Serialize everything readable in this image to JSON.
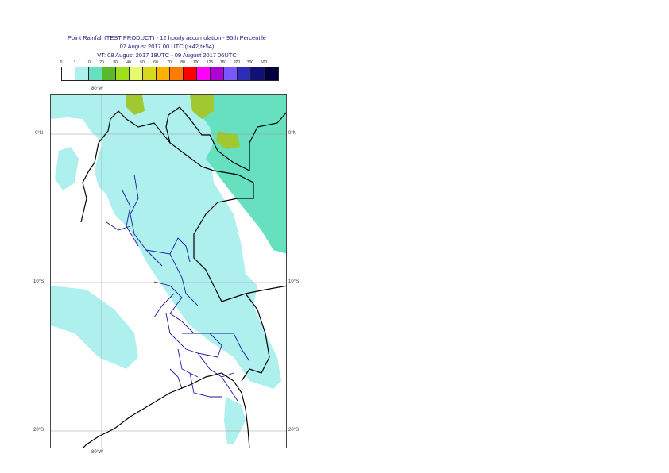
{
  "title": {
    "line1": "Point Rainfall (TEST PRODUCT) - 12 hourly accumulation - 95th Percentile",
    "line2": "07 August 2017 00 UTC (t+42,t+54)",
    "line3": "VT: 08 August 2017 18UTC - 09 August 2017 06UTC"
  },
  "legend": {
    "labels": [
      "0",
      "1",
      "10",
      "20",
      "30",
      "40",
      "50",
      "60",
      "70",
      "80",
      "100",
      "125",
      "150",
      "200",
      "300",
      "500"
    ],
    "colors": [
      "#ffffff",
      "#aef0ee",
      "#66e0bf",
      "#5cb82d",
      "#a0e01a",
      "#e8f870",
      "#d8d820",
      "#ffb000",
      "#ff7c00",
      "#ff0000",
      "#ff00ff",
      "#b000d8",
      "#7a58ff",
      "#2c2cb8",
      "#101078",
      "#000040"
    ]
  },
  "map": {
    "ticks": {
      "top_lon": "80°W",
      "bottom_lon": "80°W",
      "left_lat_0": "0°N",
      "right_lat_0": "0°N",
      "left_lat_10": "10°S",
      "right_lat_10": "10°S",
      "left_lat_20": "20°S",
      "right_lat_20": "20°S"
    },
    "colors": {
      "light": "#aef0ee",
      "medium": "#66e0bf",
      "green": "#a0c830",
      "border_country": "#000000",
      "border_region": "#1a1aa0",
      "grid": "#999999"
    }
  }
}
